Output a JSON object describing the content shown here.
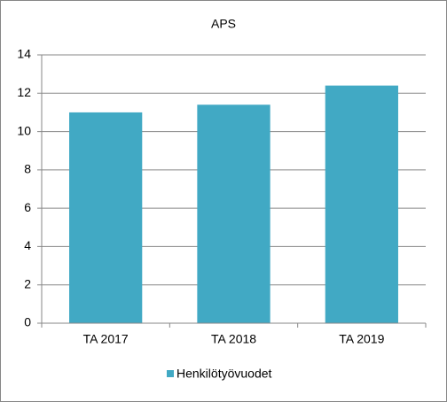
{
  "chart_data": {
    "type": "bar",
    "title": "APS",
    "categories": [
      "TA 2017",
      "TA 2018",
      "TA 2019"
    ],
    "series": [
      {
        "name": "Henkilötyövuodet",
        "color": "#41a9c4",
        "values": [
          11.0,
          11.4,
          12.4
        ]
      }
    ],
    "ylim": [
      0,
      14
    ],
    "yticks": [
      0,
      2,
      4,
      6,
      8,
      10,
      12,
      14
    ],
    "grid": true,
    "legend": "bottom"
  }
}
